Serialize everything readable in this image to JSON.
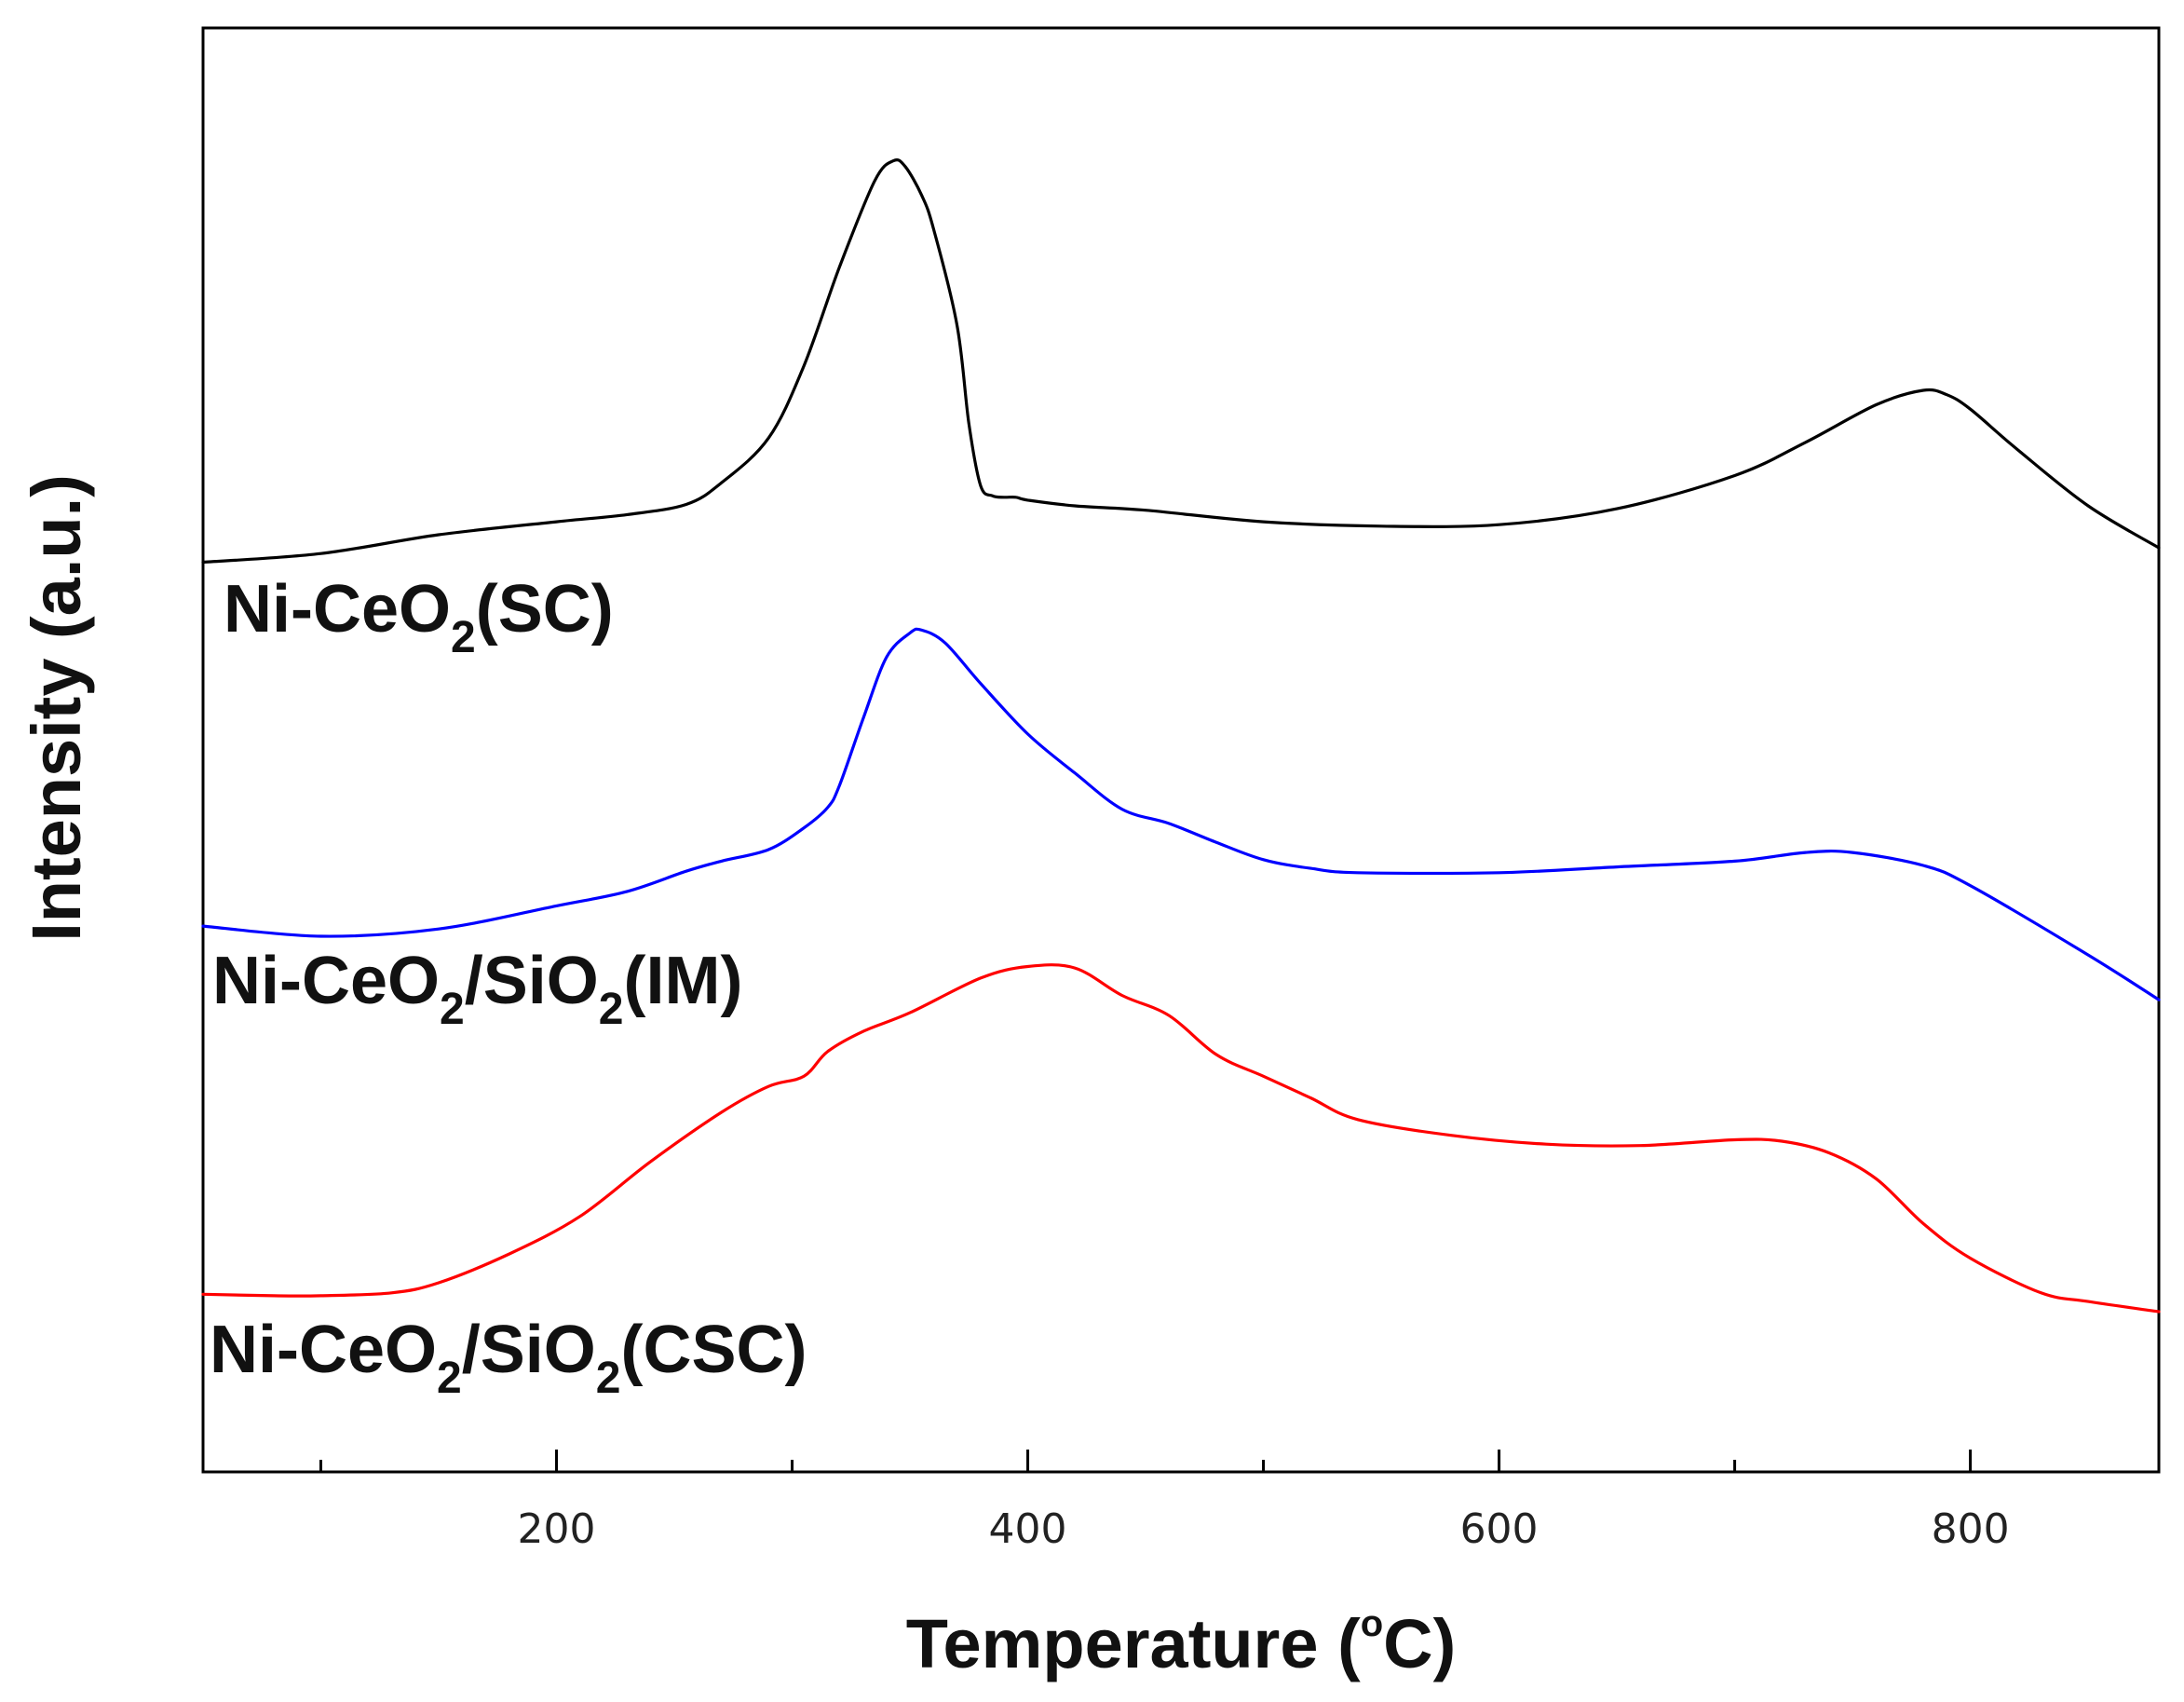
{
  "chart_data": {
    "type": "line",
    "title": "",
    "xlabel": "Temperature (°C)",
    "xlabel_parts": {
      "before": "Temperature (",
      "degree": "o",
      "after": "C)"
    },
    "ylabel": "Intensity (a.u.)",
    "xlim": [
      50,
      880
    ],
    "ylim": [
      0,
      100
    ],
    "x_ticks": [
      200,
      400,
      600,
      800
    ],
    "x_tick_labels": [
      "200",
      "400",
      "600",
      "800"
    ],
    "x_minor_ticks": [
      100,
      300,
      500,
      700
    ],
    "y_ticks": [],
    "grid": false,
    "series": [
      {
        "name": "Ni-CeO2(SC)",
        "label_parts": {
          "base": "Ni-CeO",
          "sub": "2",
          "rest": "(SC)"
        },
        "color": "#000000",
        "x": [
          50,
          100,
          150,
          200,
          230,
          255,
          270,
          290,
          305,
          320,
          335,
          343,
          348,
          355,
          360,
          370,
          375,
          380,
          385,
          390,
          395,
          400,
          420,
          450,
          500,
          550,
          600,
          650,
          700,
          730,
          760,
          780,
          790,
          800,
          820,
          850,
          880
        ],
        "y": [
          63.0,
          63.6,
          64.9,
          65.8,
          66.3,
          67.0,
          68.5,
          71.6,
          76.6,
          83.4,
          89.4,
          90.8,
          90.4,
          88.4,
          86.1,
          79.4,
          72.6,
          68.3,
          67.6,
          67.5,
          67.5,
          67.3,
          66.9,
          66.6,
          65.8,
          65.5,
          65.6,
          66.7,
          69.0,
          71.3,
          73.9,
          74.9,
          74.6,
          73.6,
          70.8,
          66.9,
          64.0
        ]
      },
      {
        "name": "Ni-CeO2/SiO2(IM)",
        "label_parts": {
          "base": "Ni-CeO",
          "sub": "2",
          "slash": "/SiO",
          "sub2": "2",
          "rest": "(IM)"
        },
        "color": "#0000ff",
        "x": [
          50,
          100,
          150,
          200,
          230,
          255,
          270,
          290,
          305,
          315,
          320,
          330,
          340,
          350,
          355,
          365,
          380,
          400,
          420,
          440,
          460,
          480,
          500,
          520,
          540,
          600,
          650,
          700,
          730,
          750,
          780,
          800,
          850,
          880
        ],
        "y": [
          37.8,
          37.1,
          37.6,
          39.2,
          40.2,
          41.6,
          42.3,
          43.1,
          44.6,
          46.0,
          47.5,
          52.1,
          56.4,
          58.1,
          58.3,
          57.4,
          54.6,
          51.1,
          48.4,
          45.9,
          44.9,
          43.6,
          42.4,
          41.8,
          41.5,
          41.5,
          41.9,
          42.3,
          42.9,
          42.9,
          42.0,
          40.6,
          35.8,
          32.7
        ]
      },
      {
        "name": "Ni-CeO2/SiO2(CSC)",
        "label_parts": {
          "base": "Ni-CeO",
          "sub": "2",
          "slash": "/SiO",
          "sub2": "2",
          "rest": "(CSC)"
        },
        "color": "#ff0000",
        "x": [
          50,
          80,
          100,
          130,
          150,
          180,
          210,
          240,
          270,
          290,
          305,
          315,
          330,
          350,
          380,
          400,
          420,
          440,
          460,
          480,
          500,
          520,
          540,
          580,
          620,
          660,
          700,
          720,
          740,
          760,
          780,
          800,
          830,
          850,
          880
        ],
        "y": [
          12.3,
          12.2,
          12.2,
          12.4,
          13.1,
          15.1,
          17.7,
          21.5,
          24.9,
          26.7,
          27.4,
          29.1,
          30.5,
          31.8,
          34.2,
          35.0,
          34.9,
          33.0,
          31.6,
          28.9,
          27.4,
          25.9,
          24.4,
          23.3,
          22.7,
          22.6,
          23.0,
          22.9,
          22.1,
          20.3,
          17.2,
          14.8,
          12.4,
          11.8,
          11.1
        ]
      }
    ]
  }
}
